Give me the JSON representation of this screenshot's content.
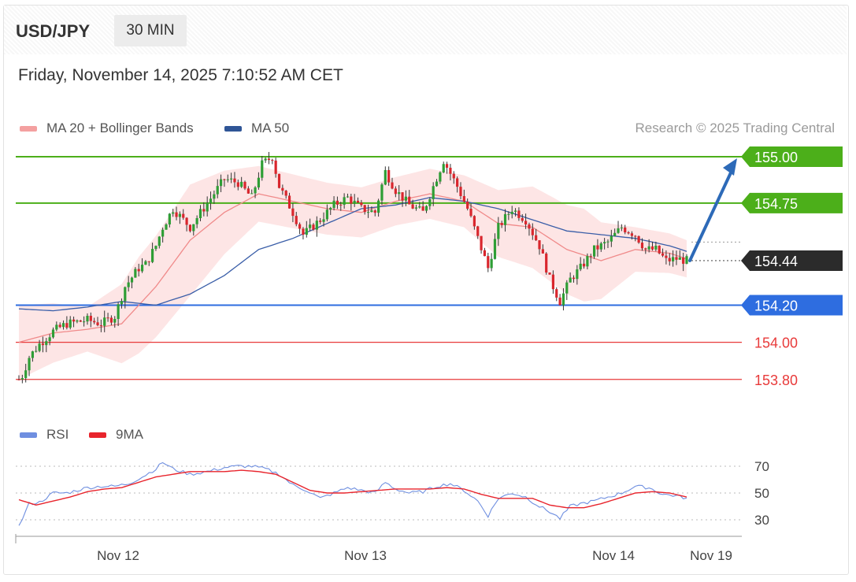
{
  "header": {
    "symbol": "USD/JPY",
    "timeframe": "30 MIN",
    "datetime": "Friday, November 14, 2025 7:10:52 AM CET"
  },
  "legend": {
    "ma20_label": "MA 20 + Bollinger Bands",
    "ma50_label": "MA 50",
    "copyright": "Research © 2025 Trading Central",
    "colors": {
      "ma20": "#f08a8a",
      "ma50": "#3a5ea8",
      "band": "#fde0e0"
    }
  },
  "rsi_legend": {
    "rsi_label": "RSI",
    "ma_label": "9MA",
    "colors": {
      "rsi": "#6f8fe0",
      "ma": "#e8242c"
    }
  },
  "levels": [
    {
      "value": 155.0,
      "label": "155.00",
      "style": "resistance",
      "color": "#4caf1a"
    },
    {
      "value": 154.75,
      "label": "154.75",
      "style": "resistance",
      "color": "#4caf1a"
    },
    {
      "value": 154.44,
      "label": "154.44",
      "style": "last",
      "color": "#2b2b2b"
    },
    {
      "value": 154.2,
      "label": "154.20",
      "style": "pivot",
      "color": "#2e6de0"
    },
    {
      "value": 154.0,
      "label": "154.00",
      "style": "support",
      "color": "#e83a3a"
    },
    {
      "value": 153.8,
      "label": "153.80",
      "style": "support",
      "color": "#e83a3a"
    }
  ],
  "chart_data": [
    {
      "type": "candlestick",
      "title": "USD/JPY",
      "x_ticks": [
        "Nov 12",
        "Nov 13",
        "Nov 14",
        "Nov 19"
      ],
      "ylim": [
        153.6,
        155.05
      ],
      "price_anchors": [
        [
          0,
          153.8
        ],
        [
          1,
          153.82
        ],
        [
          3,
          153.92
        ],
        [
          6,
          153.99
        ],
        [
          10,
          154.06
        ],
        [
          14,
          154.1
        ],
        [
          20,
          154.12
        ],
        [
          24,
          154.1
        ],
        [
          28,
          154.14
        ],
        [
          31,
          154.3
        ],
        [
          35,
          154.4
        ],
        [
          37,
          154.42
        ],
        [
          40,
          154.52
        ],
        [
          42,
          154.62
        ],
        [
          45,
          154.72
        ],
        [
          50,
          154.62
        ],
        [
          55,
          154.75
        ],
        [
          60,
          154.88
        ],
        [
          64,
          154.86
        ],
        [
          68,
          154.78
        ],
        [
          71,
          154.96
        ],
        [
          74,
          155.0
        ],
        [
          76,
          154.84
        ],
        [
          80,
          154.7
        ],
        [
          83,
          154.58
        ],
        [
          88,
          154.66
        ],
        [
          92,
          154.74
        ],
        [
          96,
          154.78
        ],
        [
          100,
          154.72
        ],
        [
          104,
          154.7
        ],
        [
          107,
          154.92
        ],
        [
          110,
          154.82
        ],
        [
          114,
          154.74
        ],
        [
          118,
          154.7
        ],
        [
          121,
          154.84
        ],
        [
          124,
          154.98
        ],
        [
          128,
          154.84
        ],
        [
          131,
          154.72
        ],
        [
          134,
          154.56
        ],
        [
          137,
          154.4
        ],
        [
          140,
          154.62
        ],
        [
          144,
          154.72
        ],
        [
          148,
          154.66
        ],
        [
          152,
          154.52
        ],
        [
          155,
          154.34
        ],
        [
          158,
          154.22
        ],
        [
          161,
          154.34
        ],
        [
          164,
          154.4
        ],
        [
          168,
          154.5
        ],
        [
          172,
          154.54
        ],
        [
          176,
          154.62
        ],
        [
          180,
          154.58
        ],
        [
          183,
          154.5
        ],
        [
          186,
          154.5
        ],
        [
          189,
          154.44
        ],
        [
          192,
          154.45
        ],
        [
          195,
          154.44
        ]
      ],
      "ma20_anchors": [
        [
          0,
          154.0
        ],
        [
          10,
          154.05
        ],
        [
          20,
          154.07
        ],
        [
          30,
          154.1
        ],
        [
          40,
          154.3
        ],
        [
          50,
          154.55
        ],
        [
          60,
          154.7
        ],
        [
          70,
          154.8
        ],
        [
          80,
          154.76
        ],
        [
          90,
          154.72
        ],
        [
          100,
          154.7
        ],
        [
          110,
          154.76
        ],
        [
          120,
          154.8
        ],
        [
          130,
          154.76
        ],
        [
          140,
          154.64
        ],
        [
          150,
          154.62
        ],
        [
          160,
          154.5
        ],
        [
          170,
          154.44
        ],
        [
          180,
          154.5
        ],
        [
          190,
          154.48
        ],
        [
          195,
          154.45
        ]
      ],
      "ma50_anchors": [
        [
          0,
          154.18
        ],
        [
          10,
          154.17
        ],
        [
          20,
          154.19
        ],
        [
          30,
          154.22
        ],
        [
          40,
          154.2
        ],
        [
          50,
          154.26
        ],
        [
          60,
          154.36
        ],
        [
          70,
          154.5
        ],
        [
          80,
          154.56
        ],
        [
          90,
          154.64
        ],
        [
          100,
          154.72
        ],
        [
          110,
          154.74
        ],
        [
          120,
          154.78
        ],
        [
          130,
          154.76
        ],
        [
          140,
          154.72
        ],
        [
          150,
          154.66
        ],
        [
          160,
          154.6
        ],
        [
          170,
          154.58
        ],
        [
          180,
          154.56
        ],
        [
          190,
          154.52
        ],
        [
          195,
          154.49
        ]
      ],
      "band_halfwidth_anchors": [
        [
          0,
          0.2
        ],
        [
          20,
          0.12
        ],
        [
          35,
          0.26
        ],
        [
          50,
          0.3
        ],
        [
          70,
          0.15
        ],
        [
          90,
          0.14
        ],
        [
          110,
          0.13
        ],
        [
          130,
          0.14
        ],
        [
          150,
          0.22
        ],
        [
          165,
          0.25
        ],
        [
          180,
          0.12
        ],
        [
          195,
          0.1
        ]
      ],
      "forecast_target": 155.0
    },
    {
      "type": "line",
      "title": "RSI",
      "y_ticks": [
        30,
        50,
        70
      ],
      "ylim": [
        20,
        80
      ],
      "series": [
        {
          "name": "RSI",
          "color": "#6f8fe0",
          "anchors": [
            [
              0,
              25
            ],
            [
              3,
              42
            ],
            [
              6,
              43
            ],
            [
              10,
              50
            ],
            [
              14,
              50
            ],
            [
              20,
              54
            ],
            [
              24,
              55
            ],
            [
              28,
              55
            ],
            [
              32,
              57
            ],
            [
              36,
              62
            ],
            [
              40,
              68
            ],
            [
              42,
              73
            ],
            [
              45,
              68
            ],
            [
              50,
              64
            ],
            [
              55,
              66
            ],
            [
              60,
              69
            ],
            [
              64,
              70
            ],
            [
              68,
              70
            ],
            [
              72,
              68
            ],
            [
              76,
              64
            ],
            [
              80,
              56
            ],
            [
              84,
              52
            ],
            [
              88,
              46
            ],
            [
              92,
              50
            ],
            [
              96,
              54
            ],
            [
              100,
              52
            ],
            [
              104,
              50
            ],
            [
              107,
              58
            ],
            [
              110,
              53
            ],
            [
              114,
              50
            ],
            [
              118,
              51
            ],
            [
              122,
              55
            ],
            [
              126,
              57
            ],
            [
              130,
              52
            ],
            [
              134,
              44
            ],
            [
              137,
              33
            ],
            [
              140,
              46
            ],
            [
              144,
              50
            ],
            [
              148,
              47
            ],
            [
              152,
              40
            ],
            [
              155,
              36
            ],
            [
              158,
              31
            ],
            [
              161,
              40
            ],
            [
              164,
              42
            ],
            [
              168,
              44
            ],
            [
              172,
              47
            ],
            [
              176,
              50
            ],
            [
              180,
              55
            ],
            [
              184,
              54
            ],
            [
              188,
              49
            ],
            [
              192,
              48
            ],
            [
              195,
              46
            ]
          ]
        },
        {
          "name": "9MA",
          "color": "#e8242c",
          "anchors": [
            [
              0,
              45
            ],
            [
              5,
              41
            ],
            [
              10,
              44
            ],
            [
              15,
              47
            ],
            [
              20,
              51
            ],
            [
              25,
              53
            ],
            [
              30,
              54
            ],
            [
              35,
              58
            ],
            [
              40,
              62
            ],
            [
              45,
              64
            ],
            [
              50,
              66
            ],
            [
              55,
              66
            ],
            [
              60,
              66
            ],
            [
              65,
              67
            ],
            [
              70,
              66
            ],
            [
              75,
              64
            ],
            [
              80,
              58
            ],
            [
              85,
              52
            ],
            [
              90,
              50
            ],
            [
              95,
              50
            ],
            [
              100,
              51
            ],
            [
              105,
              52
            ],
            [
              110,
              53
            ],
            [
              115,
              53
            ],
            [
              120,
              53
            ],
            [
              125,
              54
            ],
            [
              130,
              53
            ],
            [
              135,
              49
            ],
            [
              140,
              46
            ],
            [
              145,
              46
            ],
            [
              150,
              46
            ],
            [
              155,
              41
            ],
            [
              160,
              39
            ],
            [
              165,
              39
            ],
            [
              170,
              42
            ],
            [
              175,
              46
            ],
            [
              180,
              50
            ],
            [
              185,
              51
            ],
            [
              190,
              50
            ],
            [
              195,
              47
            ]
          ]
        }
      ]
    }
  ]
}
